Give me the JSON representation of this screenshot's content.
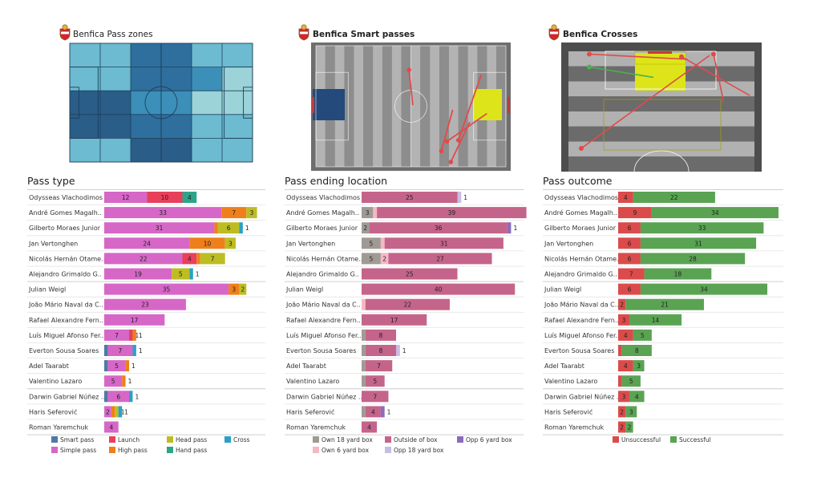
{
  "colors": {
    "smart_pass": "#4e79a7",
    "simple_pass": "#d667c7",
    "launch": "#e8405b",
    "high_pass": "#ef7f1a",
    "head_pass": "#bcbd22",
    "hand_pass": "#2ca58a",
    "cross": "#2ba0c7",
    "own_18": "#a09a95",
    "own_6": "#f5b8c4",
    "outside_box": "#c5648a",
    "opp_18": "#c8bde4",
    "opp_6": "#8c6bbf",
    "unsuccessful": "#db4b4b",
    "successful": "#5aa353"
  },
  "headers": {
    "pass_zones": "Benfica Pass zones",
    "smart_passes": "Benfica Smart passes",
    "crosses": "Benfica Crosses"
  },
  "players": [
    "Odysseas Vlachodimos",
    "André Gomes Magalh..",
    "Gilberto Moraes Junior",
    "Jan Vertonghen",
    "Nicolás Hernán Otame..",
    "Alejandro Grimaldo G..",
    "Julian Weigl",
    "João Mário Naval da C..",
    "Rafael Alexandre Fern..",
    "Luís Miguel Afonso Fer..",
    "Everton Sousa Soares",
    "Adel Taarabt",
    "Valentino Lazaro",
    "Darwin Gabriel Núñez ..",
    "Haris Seferović",
    "Roman Yaremchuk"
  ],
  "chart_data": [
    {
      "type": "bar",
      "title": "Pass type",
      "categories": [
        "Odysseas Vlachodimos",
        "André Gomes Magalh..",
        "Gilberto Moraes Junior",
        "Jan Vertonghen",
        "Nicolás Hernán Otame..",
        "Alejandro Grimaldo G..",
        "Julian Weigl",
        "João Mário Naval da C..",
        "Rafael Alexandre Fern..",
        "Luís Miguel Afonso Fer..",
        "Everton Sousa Soares",
        "Adel Taarabt",
        "Valentino Lazaro",
        "Darwin Gabriel Núñez ..",
        "Haris Seferović",
        "Roman Yaremchuk"
      ],
      "series": [
        {
          "name": "Smart pass",
          "color_key": "smart_pass",
          "values": [
            0,
            0,
            0,
            0,
            0,
            0,
            0,
            0,
            0,
            0,
            1,
            1,
            0,
            1,
            0,
            0
          ]
        },
        {
          "name": "Simple pass",
          "color_key": "simple_pass",
          "values": [
            12,
            33,
            31,
            24,
            22,
            19,
            35,
            23,
            17,
            7,
            7,
            5,
            5,
            6,
            2,
            4
          ]
        },
        {
          "name": "Launch",
          "color_key": "launch",
          "values": [
            10,
            0,
            0,
            0,
            4,
            0,
            0,
            0,
            0,
            1,
            0,
            0,
            0,
            0,
            0,
            0
          ]
        },
        {
          "name": "High pass",
          "color_key": "high_pass",
          "values": [
            0,
            7,
            1,
            10,
            1,
            0,
            3,
            0,
            0,
            1,
            0,
            1,
            1,
            0,
            1,
            0
          ]
        },
        {
          "name": "Head pass",
          "color_key": "head_pass",
          "values": [
            0,
            3,
            6,
            3,
            7,
            5,
            2,
            0,
            0,
            0,
            0,
            0,
            0,
            0,
            1,
            0
          ]
        },
        {
          "name": "Hand pass",
          "color_key": "hand_pass",
          "values": [
            4,
            0,
            0,
            0,
            0,
            0,
            0,
            0,
            0,
            0,
            0,
            0,
            0,
            0,
            0,
            0
          ]
        },
        {
          "name": "Cross",
          "color_key": "cross",
          "values": [
            0,
            0,
            1,
            0,
            0,
            1,
            0,
            0,
            0,
            0,
            1,
            0,
            0,
            1,
            1,
            0
          ]
        }
      ],
      "legend": [
        {
          "label": "Smart pass",
          "color_key": "smart_pass"
        },
        {
          "label": "Launch",
          "color_key": "launch"
        },
        {
          "label": "Head pass",
          "color_key": "head_pass"
        },
        {
          "label": "Cross",
          "color_key": "cross"
        },
        {
          "label": "Simple pass",
          "color_key": "simple_pass"
        },
        {
          "label": "High pass",
          "color_key": "high_pass"
        },
        {
          "label": "Hand pass",
          "color_key": "hand_pass"
        }
      ],
      "legend_position": "bottom"
    },
    {
      "type": "bar",
      "title": "Pass ending location",
      "categories": [
        "Odysseas Vlachodimos",
        "André Gomes Magalh..",
        "Gilberto Moraes Junior",
        "Jan Vertonghen",
        "Nicolás Hernán Otame..",
        "Alejandro Grimaldo G..",
        "Julian Weigl",
        "João Mário Naval da C..",
        "Rafael Alexandre Fern..",
        "Luís Miguel Afonso Fer..",
        "Everton Sousa Soares",
        "Adel Taarabt",
        "Valentino Lazaro",
        "Darwin Gabriel Núñez ..",
        "Haris Seferović",
        "Roman Yaremchuk"
      ],
      "series": [
        {
          "name": "Own 18 yard box",
          "color_key": "own_18",
          "values": [
            0,
            3,
            2,
            5,
            5,
            0,
            0,
            0,
            0,
            1,
            1,
            1,
            1,
            0,
            1,
            0
          ]
        },
        {
          "name": "Own 6 yard box",
          "color_key": "own_6",
          "values": [
            0,
            1,
            0,
            1,
            2,
            0,
            0,
            1,
            0,
            0,
            0,
            0,
            0,
            0,
            0,
            0
          ]
        },
        {
          "name": "Outside of box",
          "color_key": "outside_box",
          "values": [
            25,
            39,
            36,
            31,
            27,
            25,
            40,
            22,
            17,
            8,
            8,
            7,
            5,
            7,
            4,
            4
          ]
        },
        {
          "name": "Opp 18 yard box",
          "color_key": "opp_18",
          "values": [
            1,
            0,
            0,
            0,
            0,
            0,
            0,
            0,
            0,
            0,
            1,
            0,
            0,
            0,
            0,
            0
          ]
        },
        {
          "name": "Opp 6 yard box",
          "color_key": "opp_6",
          "values": [
            0,
            0,
            1,
            0,
            0,
            0,
            0,
            0,
            0,
            0,
            0,
            0,
            0,
            0,
            1,
            0
          ]
        }
      ],
      "legend": [
        {
          "label": "Own 18 yard box",
          "color_key": "own_18"
        },
        {
          "label": "Outside of box",
          "color_key": "outside_box"
        },
        {
          "label": "Opp 6 yard box",
          "color_key": "opp_6"
        },
        {
          "label": "Own 6 yard box",
          "color_key": "own_6"
        },
        {
          "label": "Opp 18 yard box",
          "color_key": "opp_18"
        }
      ],
      "legend_position": "bottom"
    },
    {
      "type": "bar",
      "title": "Pass outcome",
      "categories": [
        "Odysseas Vlachodimos",
        "André Gomes Magalh..",
        "Gilberto Moraes Junior",
        "Jan Vertonghen",
        "Nicolás Hernán Otame..",
        "Alejandro Grimaldo G..",
        "Julian Weigl",
        "João Mário Naval da C..",
        "Rafael Alexandre Fern..",
        "Luís Miguel Afonso Fer..",
        "Everton Sousa Soares",
        "Adel Taarabt",
        "Valentino Lazaro",
        "Darwin Gabriel Núñez ..",
        "Haris Seferović",
        "Roman Yaremchuk"
      ],
      "series": [
        {
          "name": "Unsuccessful",
          "color_key": "unsuccessful",
          "values": [
            4,
            9,
            6,
            6,
            6,
            7,
            6,
            2,
            3,
            4,
            1,
            4,
            1,
            3,
            2,
            2
          ]
        },
        {
          "name": "Successful",
          "color_key": "successful",
          "values": [
            22,
            34,
            33,
            31,
            28,
            18,
            34,
            21,
            14,
            5,
            8,
            3,
            5,
            4,
            3,
            2
          ]
        }
      ],
      "legend": [
        {
          "label": "Unsuccessful",
          "color_key": "unsuccessful"
        },
        {
          "label": "Successful",
          "color_key": "successful"
        }
      ],
      "legend_position": "bottom"
    }
  ],
  "pass_zones": {
    "cols": 6,
    "rows": 5,
    "shades": [
      [
        2,
        2,
        4,
        4,
        2,
        2
      ],
      [
        2,
        2,
        4,
        4,
        3,
        1
      ],
      [
        5,
        5,
        3,
        3,
        1,
        1
      ],
      [
        5,
        5,
        4,
        4,
        2,
        2
      ],
      [
        2,
        2,
        5,
        5,
        2,
        2
      ]
    ],
    "palette": [
      "#c4e7e2",
      "#9bd3d8",
      "#6cbbd0",
      "#3b8fb8",
      "#2e6f9e",
      "#2a5d88"
    ]
  },
  "smart_passes": [
    {
      "from": [
        0.49,
        0.2
      ],
      "to": [
        0.51,
        0.49
      ]
    },
    {
      "from": [
        0.71,
        0.96
      ],
      "to": [
        0.81,
        0.63
      ]
    },
    {
      "from": [
        0.75,
        0.78
      ],
      "to": [
        0.87,
        0.24
      ]
    },
    {
      "from": [
        0.69,
        0.79
      ],
      "to": [
        0.9,
        0.56
      ]
    },
    {
      "from": [
        0.66,
        0.87
      ],
      "to": [
        0.72,
        0.53
      ]
    }
  ],
  "crosses": [
    {
      "from": [
        0.1,
        0.82
      ],
      "to": [
        0.74,
        0.1
      ],
      "success": false
    },
    {
      "from": [
        0.14,
        0.09
      ],
      "to": [
        0.63,
        0.13
      ],
      "success": false
    },
    {
      "from": [
        0.14,
        0.19
      ],
      "to": [
        0.46,
        0.27
      ],
      "success": true
    },
    {
      "from": [
        0.6,
        0.11
      ],
      "to": [
        0.94,
        0.41
      ],
      "success": false
    },
    {
      "from": [
        0.76,
        0.09
      ],
      "to": [
        0.81,
        0.46
      ],
      "success": false
    }
  ]
}
